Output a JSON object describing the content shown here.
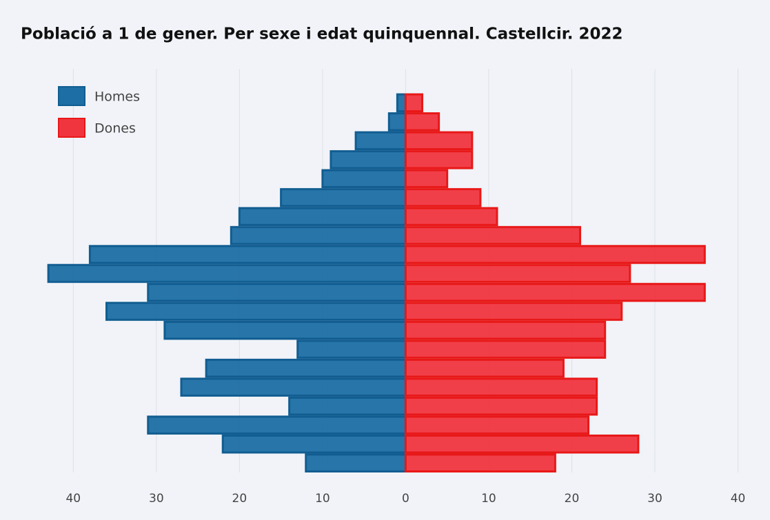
{
  "chart_data": {
    "type": "pyramid",
    "title": "Població a 1 de gener. Per sexe i edat quinquennal. Castellcir. 2022",
    "series": [
      {
        "name": "Homes",
        "color": "#1c6ea4",
        "side": "left",
        "values": [
          12,
          22,
          31,
          14,
          27,
          24,
          13,
          29,
          36,
          31,
          43,
          38,
          21,
          20,
          15,
          10,
          9,
          6,
          2,
          1,
          0
        ]
      },
      {
        "name": "Dones",
        "color": "#f0353f",
        "side": "right",
        "values": [
          18,
          28,
          22,
          23,
          23,
          19,
          24,
          24,
          26,
          36,
          27,
          36,
          21,
          11,
          9,
          5,
          8,
          8,
          4,
          2,
          0
        ]
      }
    ],
    "xlim": [
      -45.5,
      41.2
    ],
    "xticks": [
      {
        "value": -40,
        "label": "40"
      },
      {
        "value": -30,
        "label": "30"
      },
      {
        "value": -20,
        "label": "20"
      },
      {
        "value": -10,
        "label": "10"
      },
      0,
      10,
      20,
      30,
      40
    ],
    "grid": true,
    "legend": "top-left"
  }
}
